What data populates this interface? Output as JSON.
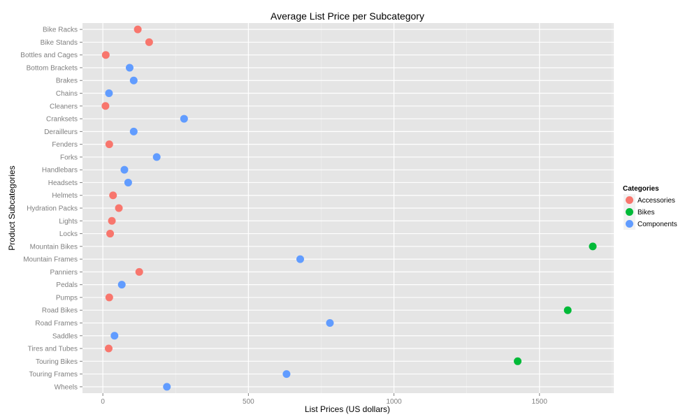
{
  "chart_data": {
    "type": "scatter",
    "title": "Average List Price per Subcategory",
    "xlabel": "List Prices (US dollars)",
    "ylabel": "Product Subcategories",
    "xlim": [
      -70,
      1755
    ],
    "xticks": [
      0,
      500,
      1000,
      1500
    ],
    "grid": true,
    "legend": {
      "title": "Categories",
      "position": "right"
    },
    "categories": [
      "Bike Racks",
      "Bike Stands",
      "Bottles and Cages",
      "Bottom Brackets",
      "Brakes",
      "Chains",
      "Cleaners",
      "Cranksets",
      "Derailleurs",
      "Fenders",
      "Forks",
      "Handlebars",
      "Headsets",
      "Helmets",
      "Hydration Packs",
      "Lights",
      "Locks",
      "Mountain Bikes",
      "Mountain Frames",
      "Panniers",
      "Pedals",
      "Pumps",
      "Road Bikes",
      "Road Frames",
      "Saddles",
      "Tires and Tubes",
      "Touring Bikes",
      "Touring Frames",
      "Wheels"
    ],
    "series": [
      {
        "name": "Accessories",
        "color": "#F8766D",
        "points": [
          {
            "y": "Bike Racks",
            "x": 120
          },
          {
            "y": "Bike Stands",
            "x": 159
          },
          {
            "y": "Bottles and Cages",
            "x": 10
          },
          {
            "y": "Cleaners",
            "x": 9
          },
          {
            "y": "Fenders",
            "x": 22
          },
          {
            "y": "Helmets",
            "x": 35
          },
          {
            "y": "Hydration Packs",
            "x": 55
          },
          {
            "y": "Lights",
            "x": 31
          },
          {
            "y": "Locks",
            "x": 25
          },
          {
            "y": "Panniers",
            "x": 125
          },
          {
            "y": "Pumps",
            "x": 22
          },
          {
            "y": "Tires and Tubes",
            "x": 20
          }
        ]
      },
      {
        "name": "Bikes",
        "color": "#00BA38",
        "points": [
          {
            "y": "Mountain Bikes",
            "x": 1683
          },
          {
            "y": "Road Bikes",
            "x": 1597
          },
          {
            "y": "Touring Bikes",
            "x": 1425
          }
        ]
      },
      {
        "name": "Components",
        "color": "#619CFF",
        "points": [
          {
            "y": "Bottom Brackets",
            "x": 92
          },
          {
            "y": "Brakes",
            "x": 106
          },
          {
            "y": "Chains",
            "x": 21
          },
          {
            "y": "Cranksets",
            "x": 279
          },
          {
            "y": "Derailleurs",
            "x": 106
          },
          {
            "y": "Forks",
            "x": 185
          },
          {
            "y": "Handlebars",
            "x": 74
          },
          {
            "y": "Headsets",
            "x": 87
          },
          {
            "y": "Mountain Frames",
            "x": 678
          },
          {
            "y": "Pedals",
            "x": 65
          },
          {
            "y": "Road Frames",
            "x": 780
          },
          {
            "y": "Saddles",
            "x": 40
          },
          {
            "y": "Touring Frames",
            "x": 631
          },
          {
            "y": "Wheels",
            "x": 220
          }
        ]
      }
    ]
  }
}
